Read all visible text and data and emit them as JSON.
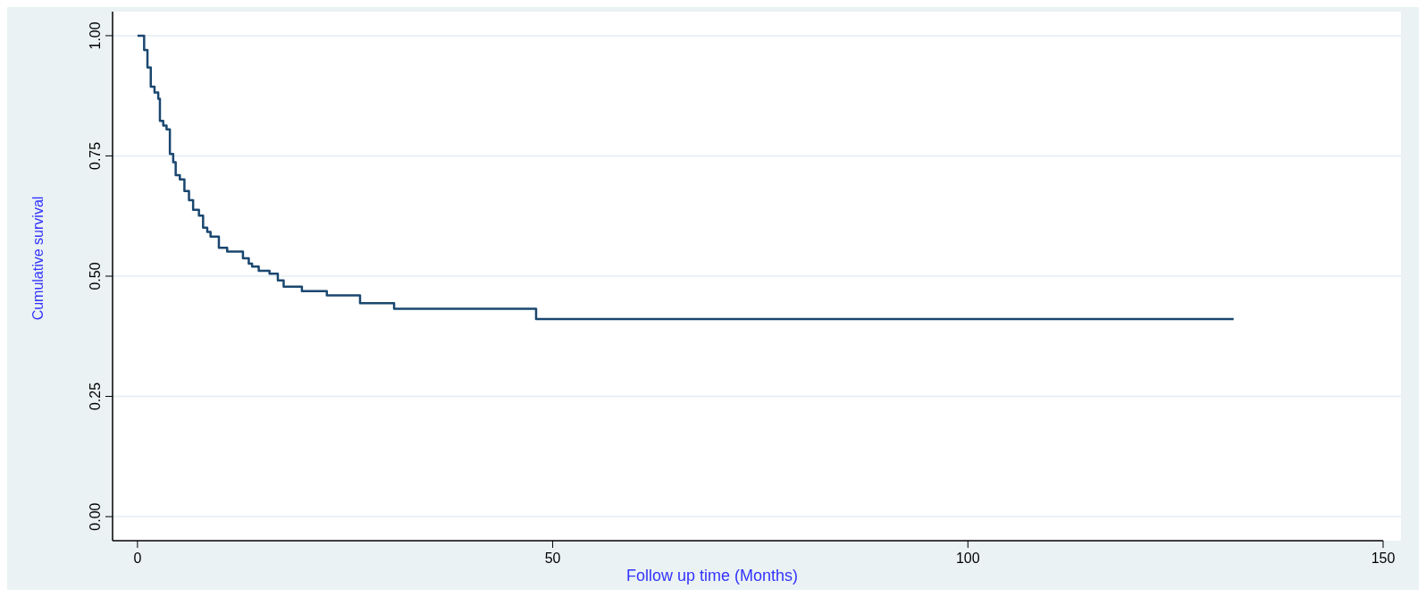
{
  "chart_data": {
    "type": "step",
    "xlabel": "Follow up time (Months)",
    "ylabel": "Cumulative survival",
    "xlim": [
      -3,
      150
    ],
    "ylim": [
      -0.05,
      1.05
    ],
    "xticks": [
      0,
      50,
      100,
      150
    ],
    "yticks": [
      {
        "value": 0,
        "label": "0.00"
      },
      {
        "value": 0.25,
        "label": "0.25"
      },
      {
        "value": 0.5,
        "label": "0.50"
      },
      {
        "value": 0.75,
        "label": "0.75"
      },
      {
        "value": 1,
        "label": "1.00"
      }
    ],
    "grid": "y",
    "series": [
      {
        "color": "#1a476f",
        "x": [
          0,
          0.8,
          1.2,
          1.6,
          2.05,
          2.5,
          2.7,
          3.1,
          3.5,
          3.9,
          4.3,
          4.6,
          5.1,
          5.65,
          6.2,
          6.7,
          7.4,
          7.9,
          8.4,
          8.8,
          9.8,
          10.8,
          12.7,
          13.4,
          13.8,
          14.6,
          15.9,
          16.9,
          17.6,
          19.8,
          22.8,
          26.8,
          30.9,
          48,
          132
        ],
        "values": [
          1,
          0.97,
          0.934,
          0.894,
          0.882,
          0.869,
          0.823,
          0.813,
          0.805,
          0.754,
          0.737,
          0.71,
          0.701,
          0.677,
          0.658,
          0.638,
          0.626,
          0.601,
          0.592,
          0.582,
          0.559,
          0.551,
          0.537,
          0.526,
          0.52,
          0.511,
          0.505,
          0.491,
          0.478,
          0.469,
          0.46,
          0.444,
          0.432,
          0.411,
          0.411
        ]
      }
    ]
  }
}
